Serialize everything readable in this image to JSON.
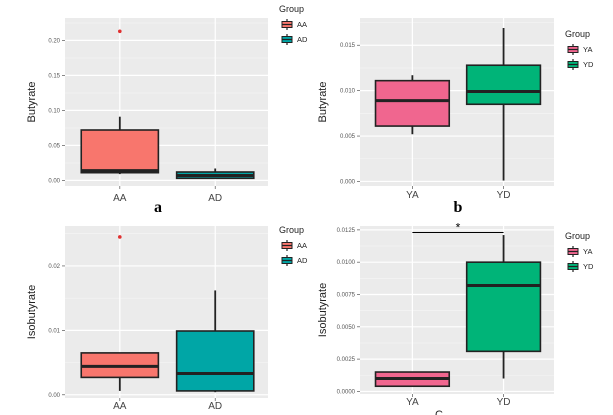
{
  "colors": {
    "panel_bg": "#ebebeb",
    "grid_major": "#ffffff",
    "grid_minor": "#f5f5f5",
    "outline": "#222222",
    "outlier": "#e03030",
    "AA": "#f8766d",
    "AD": "#00a6a6",
    "YA": "#f0668f",
    "YD": "#00b478"
  },
  "chart_data": [
    {
      "type": "boxplot",
      "label": "a",
      "ylabel": "Butyrate",
      "xlabel": "",
      "categories": [
        "AA",
        "AD"
      ],
      "ylim": [
        -0.008,
        0.232
      ],
      "yticks": [
        0.0,
        0.05,
        0.1,
        0.15,
        0.2
      ],
      "ytick_labels": [
        "0.00",
        "0.05",
        "0.10",
        "0.15",
        "0.20"
      ],
      "boxes": [
        {
          "group": "AA",
          "min": 0.009,
          "q1": 0.011,
          "median": 0.014,
          "q3": 0.072,
          "max": 0.091,
          "outliers": [
            0.213
          ]
        },
        {
          "group": "AD",
          "min": 0.002,
          "q1": 0.003,
          "median": 0.007,
          "q3": 0.012,
          "max": 0.017,
          "outliers": []
        }
      ],
      "legend": {
        "title": "Group",
        "entries": [
          "AA",
          "AD"
        ],
        "position": "right"
      }
    },
    {
      "type": "boxplot",
      "label": "b",
      "ylabel": "Butyrate",
      "xlabel": "",
      "categories": [
        "YA",
        "YD"
      ],
      "ylim": [
        -0.0005,
        0.018
      ],
      "yticks": [
        0.0,
        0.005,
        0.01,
        0.015
      ],
      "ytick_labels": [
        "0.000",
        "0.005",
        "0.010",
        "0.015"
      ],
      "boxes": [
        {
          "group": "YA",
          "min": 0.0052,
          "q1": 0.0061,
          "median": 0.0089,
          "q3": 0.0111,
          "max": 0.0117,
          "outliers": []
        },
        {
          "group": "YD",
          "min": 0.0001,
          "q1": 0.0085,
          "median": 0.0099,
          "q3": 0.0128,
          "max": 0.0169,
          "outliers": []
        }
      ],
      "legend": {
        "title": "Group",
        "entries": [
          "YA",
          "YD"
        ],
        "position": "right"
      }
    },
    {
      "type": "boxplot",
      "label": "",
      "ylabel": "Isobutyrate",
      "xlabel": "",
      "categories": [
        "AA",
        "AD"
      ],
      "ylim": [
        -0.0005,
        0.0262
      ],
      "yticks": [
        0.0,
        0.01,
        0.02
      ],
      "ytick_labels": [
        "0.00",
        "0.01",
        "0.02"
      ],
      "boxes": [
        {
          "group": "AA",
          "min": 0.0006,
          "q1": 0.0027,
          "median": 0.0044,
          "q3": 0.0065,
          "max": 0.0065,
          "outliers": [
            0.0245
          ]
        },
        {
          "group": "AD",
          "min": 0.0004,
          "q1": 0.0006,
          "median": 0.0033,
          "q3": 0.0099,
          "max": 0.0162,
          "outliers": []
        }
      ],
      "legend": {
        "title": "Group",
        "entries": [
          "AA",
          "AD"
        ],
        "position": "right"
      }
    },
    {
      "type": "boxplot",
      "label": "",
      "ylabel": "Isobutyrate",
      "xlabel": "C",
      "categories": [
        "YA",
        "YD"
      ],
      "ylim": [
        -0.0002,
        0.0128
      ],
      "yticks": [
        0.0,
        0.0025,
        0.005,
        0.0075,
        0.01,
        0.0125
      ],
      "ytick_labels": [
        "0.0000",
        "0.0025",
        "0.0050",
        "0.0075",
        "0.0100",
        "0.0125"
      ],
      "boxes": [
        {
          "group": "YA",
          "min": 0.0004,
          "q1": 0.0004,
          "median": 0.001,
          "q3": 0.0015,
          "max": 0.0015,
          "outliers": []
        },
        {
          "group": "YD",
          "min": 0.001,
          "q1": 0.0031,
          "median": 0.0082,
          "q3": 0.01,
          "max": 0.0121,
          "outliers": []
        }
      ],
      "significance": {
        "from": "YA",
        "to": "YD",
        "y": 0.0123,
        "label": "*"
      },
      "legend": {
        "title": "Group",
        "entries": [
          "YA",
          "YD"
        ],
        "position": "right"
      }
    }
  ]
}
